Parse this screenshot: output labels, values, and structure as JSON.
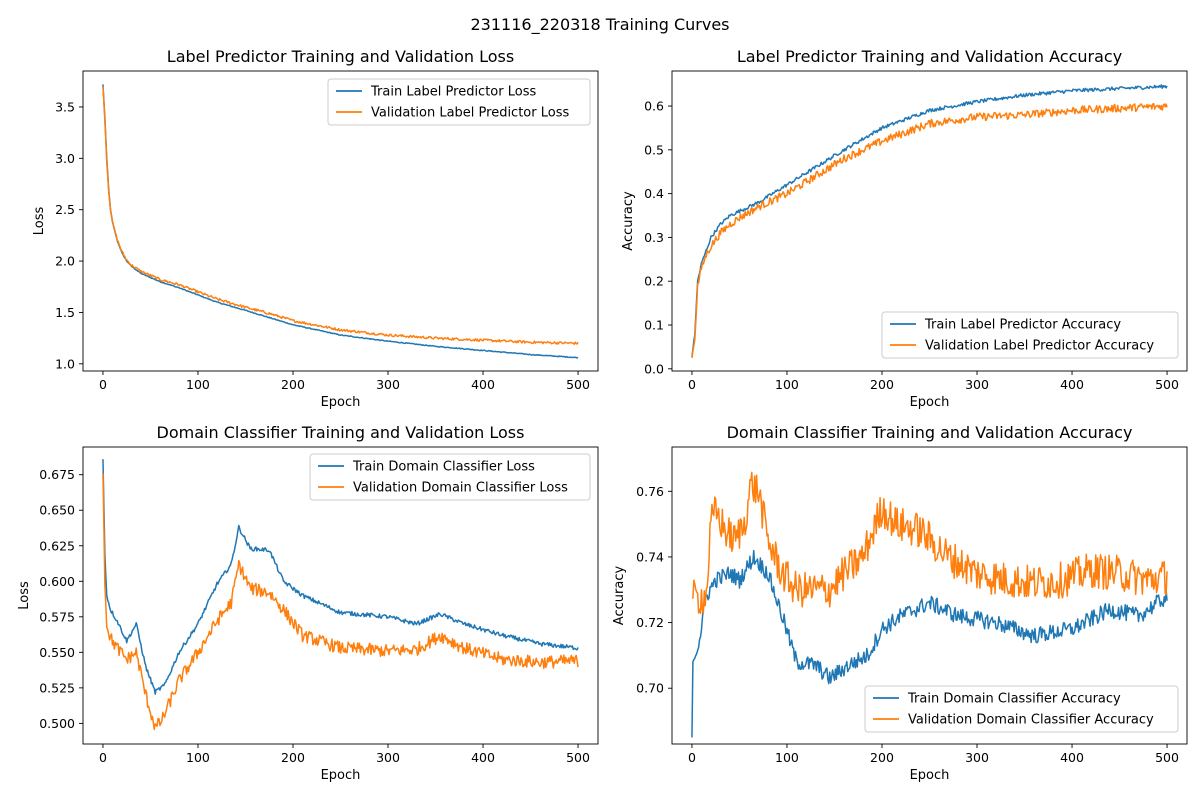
{
  "figure": {
    "suptitle": "231116_220318 Training Curves",
    "colors": {
      "train": "#1f77b4",
      "validation": "#ff7f0e",
      "axes": "#000000",
      "background": "#ffffff"
    }
  },
  "chart_data": [
    {
      "type": "line",
      "title": "Label Predictor Training and Validation Loss",
      "xlabel": "Epoch",
      "ylabel": "Loss",
      "xlim": [
        -21,
        521
      ],
      "ylim": [
        0.93,
        3.85
      ],
      "xticks": [
        0,
        100,
        200,
        300,
        400,
        500
      ],
      "yticks": [
        1.0,
        1.5,
        2.0,
        2.5,
        3.0,
        3.5
      ],
      "ytick_labels": [
        "1.0",
        "1.5",
        "2.0",
        "2.5",
        "3.0",
        "3.5"
      ],
      "grid": false,
      "legend": "top-right",
      "series": [
        {
          "name": "Train Label Predictor Loss",
          "color": "#1f77b4",
          "x": [
            0,
            2,
            4,
            6,
            8,
            10,
            15,
            20,
            25,
            30,
            40,
            50,
            60,
            80,
            100,
            120,
            150,
            175,
            200,
            250,
            300,
            350,
            400,
            450,
            500
          ],
          "y": [
            3.72,
            3.4,
            3.0,
            2.7,
            2.5,
            2.38,
            2.2,
            2.08,
            2.0,
            1.95,
            1.88,
            1.84,
            1.8,
            1.74,
            1.67,
            1.6,
            1.52,
            1.45,
            1.38,
            1.28,
            1.22,
            1.17,
            1.13,
            1.09,
            1.06
          ],
          "noise": 0.004
        },
        {
          "name": "Validation Label Predictor Loss",
          "color": "#ff7f0e",
          "x": [
            0,
            2,
            4,
            6,
            8,
            10,
            15,
            20,
            25,
            30,
            40,
            50,
            60,
            80,
            100,
            120,
            150,
            175,
            200,
            250,
            300,
            350,
            400,
            450,
            500
          ],
          "y": [
            3.7,
            3.38,
            2.98,
            2.69,
            2.5,
            2.38,
            2.21,
            2.09,
            2.01,
            1.96,
            1.9,
            1.86,
            1.82,
            1.77,
            1.7,
            1.63,
            1.55,
            1.49,
            1.42,
            1.33,
            1.28,
            1.25,
            1.23,
            1.21,
            1.2
          ],
          "noise": 0.012
        }
      ]
    },
    {
      "type": "line",
      "title": "Label Predictor Training and Validation Accuracy",
      "xlabel": "Epoch",
      "ylabel": "Accuracy",
      "xlim": [
        -21,
        521
      ],
      "ylim": [
        -0.005,
        0.68
      ],
      "xticks": [
        0,
        100,
        200,
        300,
        400,
        500
      ],
      "yticks": [
        0.0,
        0.1,
        0.2,
        0.3,
        0.4,
        0.5,
        0.6
      ],
      "ytick_labels": [
        "0.0",
        "0.1",
        "0.2",
        "0.3",
        "0.4",
        "0.5",
        "0.6"
      ],
      "grid": false,
      "legend": "bottom-right",
      "series": [
        {
          "name": "Train Label Predictor Accuracy",
          "color": "#1f77b4",
          "x": [
            0,
            3,
            6,
            10,
            15,
            20,
            30,
            40,
            50,
            70,
            100,
            130,
            160,
            200,
            250,
            300,
            350,
            400,
            450,
            500
          ],
          "y": [
            0.027,
            0.08,
            0.2,
            0.24,
            0.27,
            0.3,
            0.33,
            0.35,
            0.36,
            0.38,
            0.42,
            0.46,
            0.5,
            0.55,
            0.59,
            0.61,
            0.625,
            0.635,
            0.64,
            0.645
          ],
          "noise": 0.004
        },
        {
          "name": "Validation Label Predictor Accuracy",
          "color": "#ff7f0e",
          "x": [
            0,
            3,
            6,
            10,
            15,
            20,
            30,
            40,
            50,
            70,
            100,
            130,
            160,
            200,
            250,
            300,
            350,
            400,
            450,
            500
          ],
          "y": [
            0.025,
            0.07,
            0.19,
            0.23,
            0.26,
            0.28,
            0.31,
            0.33,
            0.345,
            0.37,
            0.4,
            0.44,
            0.48,
            0.52,
            0.56,
            0.575,
            0.58,
            0.59,
            0.595,
            0.6
          ],
          "noise": 0.009
        }
      ]
    },
    {
      "type": "line",
      "title": "Domain Classifier Training and Validation Loss",
      "xlabel": "Epoch",
      "ylabel": "Loss",
      "xlim": [
        -21,
        521
      ],
      "ylim": [
        0.4855,
        0.6945
      ],
      "xticks": [
        0,
        100,
        200,
        300,
        400,
        500
      ],
      "yticks": [
        0.5,
        0.525,
        0.55,
        0.575,
        0.6,
        0.625,
        0.65,
        0.675
      ],
      "ytick_labels": [
        "0.500",
        "0.525",
        "0.550",
        "0.575",
        "0.600",
        "0.625",
        "0.650",
        "0.675"
      ],
      "grid": false,
      "legend": "top-right",
      "series": [
        {
          "name": "Train Domain Classifier Loss",
          "color": "#1f77b4",
          "x": [
            0,
            2,
            4,
            8,
            15,
            25,
            35,
            45,
            55,
            65,
            80,
            100,
            120,
            135,
            143,
            155,
            175,
            190,
            210,
            250,
            300,
            330,
            355,
            380,
            420,
            460,
            500
          ],
          "y": [
            0.686,
            0.62,
            0.59,
            0.58,
            0.572,
            0.558,
            0.57,
            0.54,
            0.522,
            0.527,
            0.55,
            0.57,
            0.598,
            0.612,
            0.638,
            0.623,
            0.622,
            0.6,
            0.59,
            0.578,
            0.575,
            0.57,
            0.577,
            0.57,
            0.562,
            0.556,
            0.553
          ],
          "noise": 0.0015
        },
        {
          "name": "Validation Domain Classifier Loss",
          "color": "#ff7f0e",
          "x": [
            0,
            2,
            4,
            8,
            15,
            25,
            35,
            45,
            55,
            62,
            80,
            100,
            120,
            135,
            143,
            155,
            175,
            190,
            210,
            250,
            300,
            330,
            355,
            380,
            420,
            460,
            500
          ],
          "y": [
            0.676,
            0.6,
            0.57,
            0.56,
            0.553,
            0.545,
            0.55,
            0.52,
            0.497,
            0.502,
            0.53,
            0.55,
            0.572,
            0.585,
            0.612,
            0.595,
            0.592,
            0.58,
            0.562,
            0.553,
            0.551,
            0.552,
            0.562,
            0.553,
            0.545,
            0.543,
            0.544
          ],
          "noise": 0.0045
        }
      ]
    },
    {
      "type": "line",
      "title": "Domain Classifier Training and Validation Accuracy",
      "xlabel": "Epoch",
      "ylabel": "Accuracy",
      "xlim": [
        -21,
        521
      ],
      "ylim": [
        0.683,
        0.7735
      ],
      "xticks": [
        0,
        100,
        200,
        300,
        400,
        500
      ],
      "yticks": [
        0.7,
        0.72,
        0.74,
        0.76
      ],
      "ytick_labels": [
        "0.70",
        "0.72",
        "0.74",
        "0.76"
      ],
      "grid": false,
      "legend": "bottom-right",
      "series": [
        {
          "name": "Train Domain Classifier Accuracy",
          "color": "#1f77b4",
          "x": [
            0,
            1,
            3,
            8,
            15,
            25,
            40,
            50,
            65,
            80,
            95,
            110,
            130,
            145,
            165,
            185,
            200,
            220,
            250,
            280,
            320,
            360,
            400,
            440,
            470,
            500
          ],
          "y": [
            0.685,
            0.708,
            0.71,
            0.715,
            0.728,
            0.733,
            0.735,
            0.733,
            0.74,
            0.735,
            0.722,
            0.708,
            0.707,
            0.703,
            0.707,
            0.71,
            0.718,
            0.722,
            0.726,
            0.722,
            0.72,
            0.716,
            0.718,
            0.724,
            0.722,
            0.728
          ],
          "noise": 0.0025
        },
        {
          "name": "Validation Domain Classifier Accuracy",
          "color": "#ff7f0e",
          "x": [
            0,
            5,
            15,
            20,
            25,
            35,
            45,
            55,
            62,
            70,
            80,
            95,
            110,
            130,
            145,
            160,
            180,
            200,
            215,
            240,
            270,
            300,
            330,
            360,
            390,
            420,
            450,
            480,
            500
          ],
          "y": [
            0.7275,
            0.7275,
            0.728,
            0.75,
            0.754,
            0.748,
            0.745,
            0.75,
            0.762,
            0.76,
            0.745,
            0.735,
            0.73,
            0.73,
            0.73,
            0.735,
            0.74,
            0.755,
            0.75,
            0.748,
            0.74,
            0.735,
            0.733,
            0.732,
            0.733,
            0.736,
            0.735,
            0.733,
            0.734
          ],
          "noise": 0.0055
        }
      ]
    }
  ]
}
